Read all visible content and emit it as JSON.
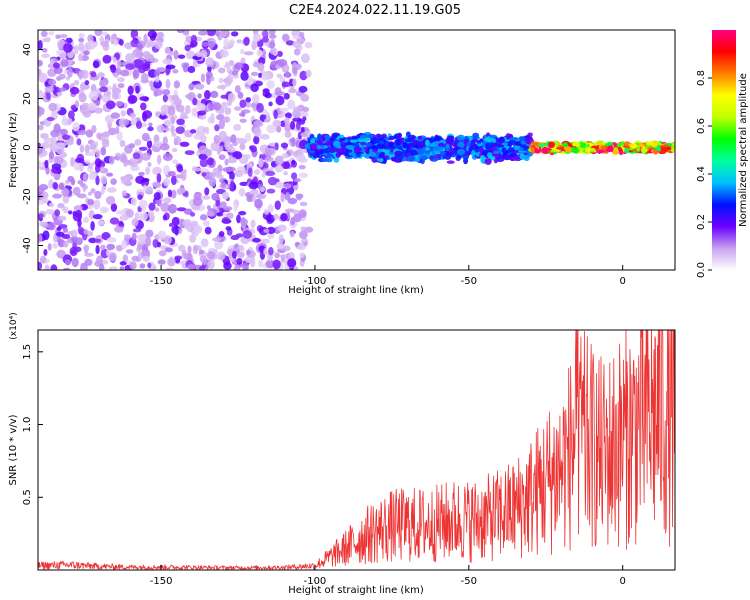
{
  "title": "C2E4.2024.022.11.19.G05",
  "chart_data": [
    {
      "type": "heatmap",
      "xlabel": "Height of straight line (km)",
      "ylabel": "Frequency (Hz)",
      "xlim": [
        -190,
        17
      ],
      "ylim": [
        -50,
        48
      ],
      "xticks": [
        -150,
        -100,
        -50,
        0
      ],
      "yticks": [
        -40,
        -20,
        0,
        20,
        40
      ],
      "colorbar": {
        "label": "Normalized spectral amplitude",
        "range": [
          0,
          1
        ],
        "ticks": [
          "0.0",
          "0.2",
          "0.4",
          "0.6",
          "0.8"
        ],
        "colormap": [
          "#ffffff",
          "#c8a0f0",
          "#6a00ff",
          "#0010ff",
          "#00c0ff",
          "#00ffa0",
          "#00ff00",
          "#c0ff00",
          "#ffff00",
          "#ff8000",
          "#ff0000",
          "#ff0080"
        ]
      },
      "description_of_content": [
        {
          "x_range": [
            -190,
            -102
          ],
          "freq_range": [
            -50,
            48
          ],
          "amplitude": 0.1
        },
        {
          "x_range": [
            -102,
            -30
          ],
          "freq_center": 0,
          "freq_halfwidth": 6,
          "amplitude": 0.3
        },
        {
          "x_range": [
            -30,
            17
          ],
          "freq_center": 0,
          "freq_halfwidth": 2,
          "amplitude": 0.8
        }
      ]
    },
    {
      "type": "line",
      "xlabel": "Height of straight line (km)",
      "ylabel": "SNR (10 * v/v)",
      "y_multiplier": "(x10⁴)",
      "xlim": [
        -190,
        17
      ],
      "ylim": [
        0,
        16500
      ],
      "xticks": [
        -150,
        -100,
        -50,
        0
      ],
      "yticks": [
        5000,
        10000,
        15000
      ],
      "ytick_labels": [
        "0.5",
        "1.0",
        "1.5"
      ],
      "color": "#ee3333",
      "series": [
        {
          "x": [
            -190,
            -180,
            -170,
            -160,
            -150,
            -140,
            -130,
            -120,
            -110,
            -100,
            -95,
            -90,
            -85,
            -80,
            -75,
            -70,
            -65,
            -60,
            -55,
            -50,
            -45,
            -40,
            -35,
            -30,
            -25,
            -20,
            -17,
            -15,
            -13,
            -10,
            -7,
            -5,
            -3,
            0,
            3,
            5,
            8,
            10,
            12,
            15,
            17
          ],
          "values": [
            300,
            350,
            250,
            200,
            200,
            180,
            160,
            160,
            180,
            300,
            900,
            1500,
            2200,
            2700,
            3000,
            3100,
            3100,
            3200,
            3400,
            3400,
            3500,
            3800,
            4200,
            5000,
            6000,
            7000,
            8000,
            9500,
            9000,
            8500,
            8000,
            8000,
            8500,
            9000,
            9500,
            10000,
            10500,
            10500,
            11000,
            10500,
            11000
          ]
        }
      ]
    }
  ]
}
